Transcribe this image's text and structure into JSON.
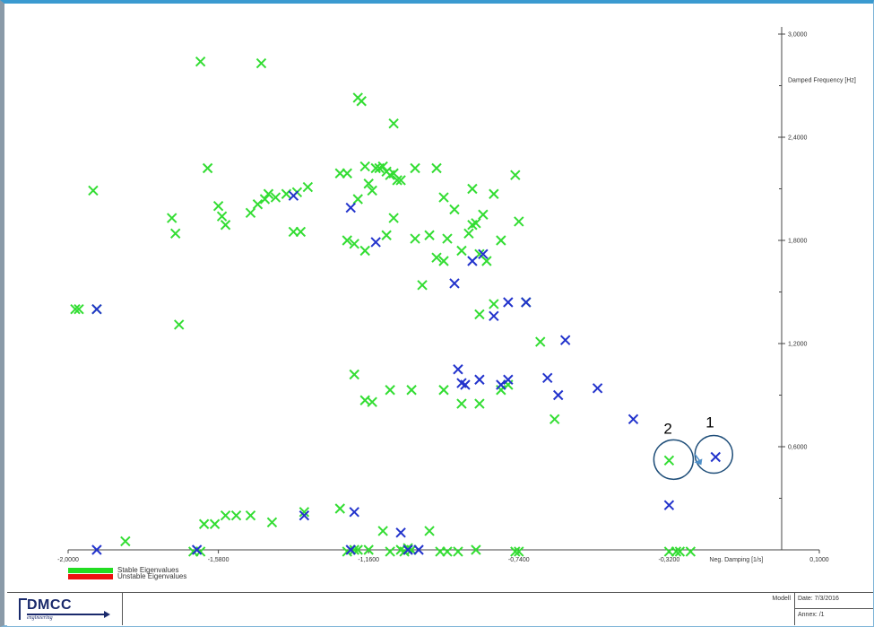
{
  "chart_data": {
    "type": "scatter",
    "xlabel": "Neg. Damping [1/s]",
    "ylabel": "Damped Frequency [Hz]",
    "xlim": [
      -2.0,
      0.1
    ],
    "ylim": [
      0.0,
      3.0
    ],
    "x_ticks": [
      -2.0,
      -1.58,
      -1.16,
      -0.74,
      -0.32,
      0.1
    ],
    "x_tick_labels": [
      "-2,0000",
      "-1,5800",
      "-1,1600",
      "-0,7400",
      "-0,3200",
      "0,1000"
    ],
    "y_ticks": [
      0.6,
      1.2,
      1.8,
      2.4,
      3.0
    ],
    "y_tick_labels": [
      "0,6000",
      "1,2000",
      "1,8000",
      "2,4000",
      "3,0000"
    ],
    "marker": "x",
    "colors": {
      "stable_marker": "#33dd33",
      "unstable_marker": "#2233cc",
      "stable_legend": "#22dd22",
      "unstable_legend": "#ee1111",
      "annotation": "#1f4e79",
      "arrow": "#4f8fc8"
    },
    "series": [
      {
        "name": "Stable Eigenvalues",
        "color": "#33dd33",
        "points": [
          [
            -1.63,
            2.84
          ],
          [
            -1.46,
            2.83
          ],
          [
            -1.19,
            2.63
          ],
          [
            -1.18,
            2.61
          ],
          [
            -1.09,
            2.48
          ],
          [
            -1.93,
            2.09
          ],
          [
            -1.61,
            2.22
          ],
          [
            -1.58,
            2.0
          ],
          [
            -1.57,
            1.94
          ],
          [
            -1.56,
            1.89
          ],
          [
            -1.49,
            1.96
          ],
          [
            -1.47,
            2.01
          ],
          [
            -1.45,
            2.04
          ],
          [
            -1.44,
            2.07
          ],
          [
            -1.42,
            2.05
          ],
          [
            -1.39,
            2.07
          ],
          [
            -1.36,
            2.08
          ],
          [
            -1.33,
            2.11
          ],
          [
            -1.24,
            2.19
          ],
          [
            -1.22,
            2.19
          ],
          [
            -1.19,
            2.04
          ],
          [
            -1.17,
            2.23
          ],
          [
            -1.16,
            2.13
          ],
          [
            -1.15,
            2.09
          ],
          [
            -1.14,
            2.22
          ],
          [
            -1.13,
            2.22
          ],
          [
            -1.12,
            2.23
          ],
          [
            -1.11,
            2.2
          ],
          [
            -1.1,
            2.18
          ],
          [
            -1.09,
            2.19
          ],
          [
            -1.08,
            2.15
          ],
          [
            -1.07,
            2.15
          ],
          [
            -1.03,
            2.22
          ],
          [
            -0.97,
            2.22
          ],
          [
            -0.95,
            2.05
          ],
          [
            -0.92,
            1.98
          ],
          [
            -0.87,
            2.1
          ],
          [
            -0.86,
            1.9
          ],
          [
            -0.84,
            1.95
          ],
          [
            -0.81,
            2.07
          ],
          [
            -0.75,
            2.18
          ],
          [
            -0.74,
            1.91
          ],
          [
            -1.37,
            1.85
          ],
          [
            -1.35,
            1.85
          ],
          [
            -1.22,
            1.8
          ],
          [
            -1.2,
            1.78
          ],
          [
            -1.17,
            1.74
          ],
          [
            -1.11,
            1.83
          ],
          [
            -1.09,
            1.93
          ],
          [
            -1.03,
            1.81
          ],
          [
            -0.99,
            1.83
          ],
          [
            -0.97,
            1.7
          ],
          [
            -0.95,
            1.68
          ],
          [
            -0.94,
            1.81
          ],
          [
            -0.9,
            1.74
          ],
          [
            -0.88,
            1.84
          ],
          [
            -0.87,
            1.89
          ],
          [
            -0.85,
            1.72
          ],
          [
            -0.83,
            1.68
          ],
          [
            -0.79,
            1.8
          ],
          [
            -1.01,
            1.54
          ],
          [
            -1.7,
            1.84
          ],
          [
            -1.71,
            1.93
          ],
          [
            -1.97,
            1.4
          ],
          [
            -1.98,
            1.4
          ],
          [
            -1.92,
            1.4
          ],
          [
            -1.69,
            1.31
          ],
          [
            -0.85,
            1.37
          ],
          [
            -0.81,
            1.43
          ],
          [
            -0.72,
            1.44
          ],
          [
            -0.68,
            1.21
          ],
          [
            -1.2,
            1.02
          ],
          [
            -1.17,
            0.87
          ],
          [
            -1.15,
            0.86
          ],
          [
            -1.1,
            0.93
          ],
          [
            -1.04,
            0.93
          ],
          [
            -0.95,
            0.93
          ],
          [
            -0.9,
            0.85
          ],
          [
            -0.85,
            0.85
          ],
          [
            -0.79,
            0.93
          ],
          [
            -0.77,
            0.96
          ],
          [
            -0.64,
            0.76
          ],
          [
            -0.32,
            0.52
          ],
          [
            -1.49,
            0.2
          ],
          [
            -1.53,
            0.2
          ],
          [
            -1.56,
            0.2
          ],
          [
            -1.59,
            0.15
          ],
          [
            -1.62,
            0.15
          ],
          [
            -1.43,
            0.16
          ],
          [
            -1.34,
            0.22
          ],
          [
            -1.24,
            0.24
          ],
          [
            -1.84,
            0.05
          ],
          [
            -1.63,
            -0.01
          ],
          [
            -1.65,
            -0.01
          ],
          [
            -1.22,
            -0.01
          ],
          [
            -1.2,
            0.0
          ],
          [
            -1.19,
            0.0
          ],
          [
            -1.16,
            0.0
          ],
          [
            -1.12,
            0.11
          ],
          [
            -1.1,
            -0.01
          ],
          [
            -1.07,
            0.0
          ],
          [
            -1.06,
            -0.01
          ],
          [
            -1.05,
            0.01
          ],
          [
            -1.04,
            0.0
          ],
          [
            -0.99,
            0.11
          ],
          [
            -0.96,
            -0.01
          ],
          [
            -0.94,
            -0.01
          ],
          [
            -0.91,
            -0.01
          ],
          [
            -0.86,
            0.0
          ],
          [
            -0.75,
            -0.01
          ],
          [
            -0.74,
            -0.01
          ],
          [
            -0.26,
            -0.01
          ],
          [
            -0.29,
            -0.01
          ],
          [
            -0.3,
            -0.01
          ],
          [
            -0.32,
            -0.01
          ]
        ]
      },
      {
        "name": "Unstable Eigenvalues",
        "color": "#2233cc",
        "points": [
          [
            -1.37,
            2.06
          ],
          [
            -1.21,
            1.99
          ],
          [
            -1.14,
            1.79
          ],
          [
            -0.87,
            1.68
          ],
          [
            -0.92,
            1.55
          ],
          [
            -0.84,
            1.72
          ],
          [
            -1.92,
            1.4
          ],
          [
            -0.81,
            1.36
          ],
          [
            -0.77,
            1.44
          ],
          [
            -0.72,
            1.44
          ],
          [
            -0.61,
            1.22
          ],
          [
            -0.91,
            1.05
          ],
          [
            -0.9,
            0.97
          ],
          [
            -0.89,
            0.96
          ],
          [
            -0.85,
            0.99
          ],
          [
            -0.79,
            0.96
          ],
          [
            -0.77,
            0.99
          ],
          [
            -0.66,
            1.0
          ],
          [
            -0.63,
            0.9
          ],
          [
            -0.52,
            0.94
          ],
          [
            -0.42,
            0.76
          ],
          [
            -0.32,
            0.26
          ],
          [
            -0.19,
            0.54
          ],
          [
            -1.92,
            0.0
          ],
          [
            -1.64,
            0.0
          ],
          [
            -1.34,
            0.2
          ],
          [
            -1.2,
            0.22
          ],
          [
            -1.07,
            0.1
          ],
          [
            -1.05,
            0.0
          ],
          [
            -1.02,
            0.0
          ],
          [
            -1.21,
            0.0
          ]
        ]
      }
    ],
    "legend": {
      "position": "bottom-left",
      "entries": [
        "Stable Eigenvalues",
        "Unstable Eigenvalues"
      ]
    },
    "annotations": [
      {
        "label": "1",
        "target": [
          -0.32,
          0.54
        ]
      },
      {
        "label": "2",
        "target": [
          -0.32,
          0.52
        ]
      }
    ]
  },
  "footer": {
    "logo_text": "DMCC",
    "logo_sub": "engineering",
    "model_label": "Modell",
    "date": "Date: 7/3/2016",
    "annex": "Annex:  /1"
  }
}
